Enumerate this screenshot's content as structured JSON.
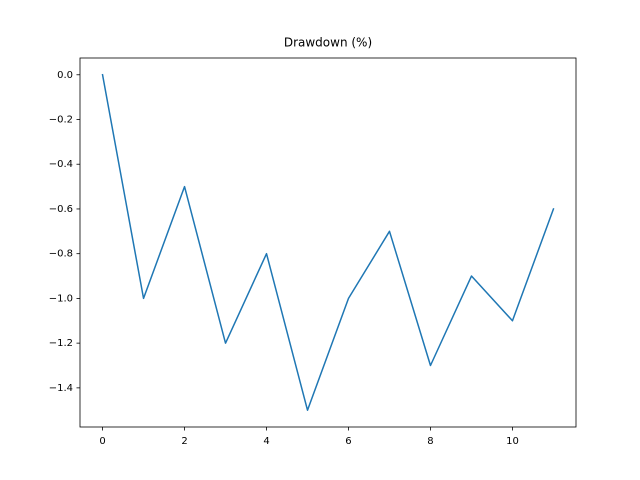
{
  "chart_data": {
    "type": "line",
    "title": "Drawdown (%)",
    "x": [
      0,
      1,
      2,
      3,
      4,
      5,
      6,
      7,
      8,
      9,
      10,
      11
    ],
    "values": [
      0,
      -1,
      -0.5,
      -1.2,
      -0.8,
      -1.5,
      -1,
      -0.7,
      -1.3,
      -0.9,
      -1.1,
      -0.6
    ],
    "color": "#1f77b4",
    "xlim": [
      -0.55,
      11.55
    ],
    "xticks": [
      0,
      2,
      4,
      6,
      8,
      10
    ],
    "ylim": [
      -1.575,
      0.075
    ],
    "yticks": [
      {
        "value": -1.4,
        "label": "−1.4"
      },
      {
        "value": -1.2,
        "label": "−1.2"
      },
      {
        "value": -1.0,
        "label": "−1.0"
      },
      {
        "value": -0.8,
        "label": "−0.8"
      },
      {
        "value": -0.6,
        "label": "−0.6"
      },
      {
        "value": -0.4,
        "label": "−0.4"
      },
      {
        "value": -0.2,
        "label": "−0.2"
      },
      {
        "value": 0,
        "label": "0.0"
      }
    ],
    "grid": false
  }
}
